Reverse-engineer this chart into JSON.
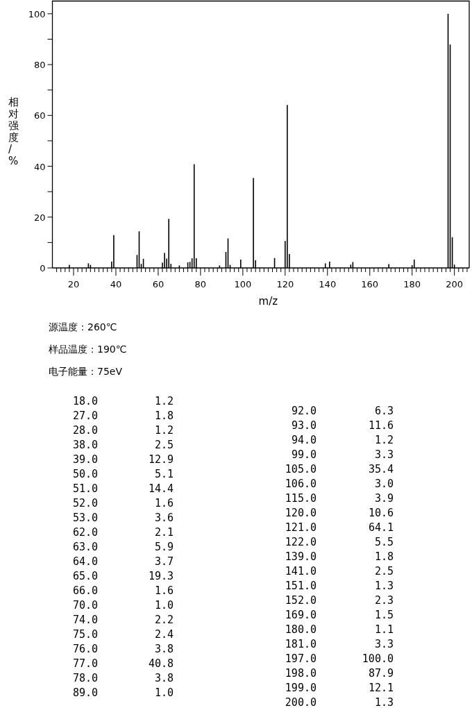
{
  "chart_data": [
    {
      "type": "bar",
      "xlabel": "m/z",
      "ylabel": "相对强度/%",
      "x": [
        18,
        27,
        28,
        38,
        39,
        50,
        51,
        52,
        53,
        62,
        63,
        64,
        65,
        66,
        70,
        74,
        75,
        76,
        77,
        78,
        89,
        92,
        93,
        94,
        99,
        105,
        106,
        115,
        120,
        121,
        122,
        139,
        141,
        151,
        152,
        169,
        180,
        181,
        197,
        198,
        199,
        200
      ],
      "values": [
        1.2,
        1.8,
        1.2,
        2.5,
        12.9,
        5.1,
        14.4,
        1.6,
        3.6,
        2.1,
        5.9,
        3.7,
        19.3,
        1.6,
        1.0,
        2.2,
        2.4,
        3.8,
        40.8,
        3.8,
        1.0,
        6.3,
        11.6,
        1.2,
        3.3,
        35.4,
        3.0,
        3.9,
        10.6,
        64.1,
        5.5,
        1.8,
        2.5,
        1.3,
        2.3,
        1.5,
        1.1,
        3.3,
        100.0,
        87.9,
        12.1,
        1.3
      ],
      "color": "#000000",
      "xlim": [
        10,
        207
      ],
      "ylim": [
        0,
        105
      ],
      "xticks": [
        {
          "value": 12,
          "label": null
        },
        {
          "value": 14,
          "label": null
        },
        {
          "value": 16,
          "label": null
        },
        {
          "value": 18,
          "label": null
        },
        20,
        {
          "value": 22,
          "label": null
        },
        {
          "value": 24,
          "label": null
        },
        {
          "value": 26,
          "label": null
        },
        {
          "value": 28,
          "label": null
        },
        {
          "value": 30,
          "label": null
        },
        {
          "value": 32,
          "label": null
        },
        {
          "value": 34,
          "label": null
        },
        {
          "value": 36,
          "label": null
        },
        {
          "value": 38,
          "label": null
        },
        40,
        {
          "value": 42,
          "label": null
        },
        {
          "value": 44,
          "label": null
        },
        {
          "value": 46,
          "label": null
        },
        {
          "value": 48,
          "label": null
        },
        {
          "value": 50,
          "label": null
        },
        {
          "value": 52,
          "label": null
        },
        {
          "value": 54,
          "label": null
        },
        {
          "value": 56,
          "label": null
        },
        {
          "value": 58,
          "label": null
        },
        60,
        {
          "value": 62,
          "label": null
        },
        {
          "value": 64,
          "label": null
        },
        {
          "value": 66,
          "label": null
        },
        {
          "value": 68,
          "label": null
        },
        {
          "value": 70,
          "label": null
        },
        {
          "value": 72,
          "label": null
        },
        {
          "value": 74,
          "label": null
        },
        {
          "value": 76,
          "label": null
        },
        {
          "value": 78,
          "label": null
        },
        80,
        {
          "value": 82,
          "label": null
        },
        {
          "value": 84,
          "label": null
        },
        {
          "value": 86,
          "label": null
        },
        {
          "value": 88,
          "label": null
        },
        {
          "value": 90,
          "label": null
        },
        {
          "value": 92,
          "label": null
        },
        {
          "value": 94,
          "label": null
        },
        {
          "value": 96,
          "label": null
        },
        {
          "value": 98,
          "label": null
        },
        100,
        {
          "value": 102,
          "label": null
        },
        {
          "value": 104,
          "label": null
        },
        {
          "value": 106,
          "label": null
        },
        {
          "value": 108,
          "label": null
        },
        {
          "value": 110,
          "label": null
        },
        {
          "value": 112,
          "label": null
        },
        {
          "value": 114,
          "label": null
        },
        {
          "value": 116,
          "label": null
        },
        {
          "value": 118,
          "label": null
        },
        120,
        {
          "value": 122,
          "label": null
        },
        {
          "value": 124,
          "label": null
        },
        {
          "value": 126,
          "label": null
        },
        {
          "value": 128,
          "label": null
        },
        {
          "value": 130,
          "label": null
        },
        {
          "value": 132,
          "label": null
        },
        {
          "value": 134,
          "label": null
        },
        {
          "value": 136,
          "label": null
        },
        {
          "value": 138,
          "label": null
        },
        140,
        {
          "value": 142,
          "label": null
        },
        {
          "value": 144,
          "label": null
        },
        {
          "value": 146,
          "label": null
        },
        {
          "value": 148,
          "label": null
        },
        {
          "value": 150,
          "label": null
        },
        {
          "value": 152,
          "label": null
        },
        {
          "value": 154,
          "label": null
        },
        {
          "value": 156,
          "label": null
        },
        {
          "value": 158,
          "label": null
        },
        160,
        {
          "value": 162,
          "label": null
        },
        {
          "value": 164,
          "label": null
        },
        {
          "value": 166,
          "label": null
        },
        {
          "value": 168,
          "label": null
        },
        {
          "value": 170,
          "label": null
        },
        {
          "value": 172,
          "label": null
        },
        {
          "value": 174,
          "label": null
        },
        {
          "value": 176,
          "label": null
        },
        {
          "value": 178,
          "label": null
        },
        180,
        {
          "value": 182,
          "label": null
        },
        {
          "value": 184,
          "label": null
        },
        {
          "value": 186,
          "label": null
        },
        {
          "value": 188,
          "label": null
        },
        {
          "value": 190,
          "label": null
        },
        {
          "value": 192,
          "label": null
        },
        {
          "value": 194,
          "label": null
        },
        {
          "value": 196,
          "label": null
        },
        {
          "value": 198,
          "label": null
        },
        200,
        {
          "value": 202,
          "label": null
        },
        {
          "value": 204,
          "label": null
        },
        {
          "value": 206,
          "label": null
        }
      ],
      "yticks": [
        0,
        {
          "value": 10,
          "label": null
        },
        20,
        {
          "value": 30,
          "label": null
        },
        40,
        {
          "value": 50,
          "label": null
        },
        60,
        {
          "value": 70,
          "label": null
        },
        80,
        {
          "value": 90,
          "label": null
        },
        100
      ],
      "annotations": [
        "源温度：260℃",
        "样品温度：190℃",
        "电子能量：75eV"
      ]
    },
    {
      "type": "other",
      "annotations": [
        "18.0",
        "1.2",
        "27.0",
        "1.8",
        "28.0",
        "1.2",
        "38.0",
        "2.5",
        "39.0",
        "12.9",
        "50.0",
        "5.1",
        "51.0",
        "14.4",
        "52.0",
        "1.6",
        "53.0",
        "3.6",
        "62.0",
        "2.1",
        "63.0",
        "5.9",
        "64.0",
        "3.7",
        "65.0",
        "19.3",
        "66.0",
        "1.6",
        "70.0",
        "1.0",
        "74.0",
        "2.2",
        "75.0",
        "2.4",
        "76.0",
        "3.8",
        "77.0",
        "40.8",
        "78.0",
        "3.8",
        "89.0",
        "1.0",
        "92.0",
        "6.3",
        "93.0",
        "11.6",
        "94.0",
        "1.2",
        "99.0",
        "3.3",
        "105.0",
        "35.4",
        "106.0",
        "3.0",
        "115.0",
        "3.9",
        "120.0",
        "10.6",
        "121.0",
        "64.1",
        "122.0",
        "5.5",
        "139.0",
        "1.8",
        "141.0",
        "2.5",
        "151.0",
        "1.3",
        "152.0",
        "2.3",
        "169.0",
        "1.5",
        "180.0",
        "1.1",
        "181.0",
        "3.3",
        "197.0",
        "100.0",
        "198.0",
        "87.9",
        "199.0",
        "12.1",
        "200.0",
        "1.3"
      ]
    }
  ]
}
